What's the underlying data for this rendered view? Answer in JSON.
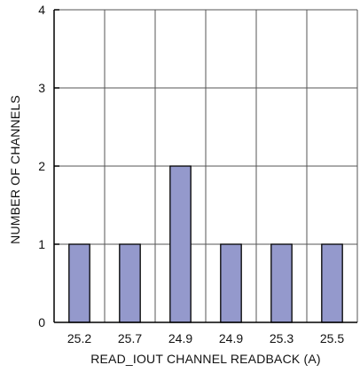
{
  "chart_data": {
    "type": "bar",
    "categories": [
      "25.2",
      "25.7",
      "24.9",
      "24.9",
      "25.3",
      "25.5"
    ],
    "values": [
      1,
      1,
      2,
      1,
      1,
      1
    ],
    "xlabel": "READ_IOUT CHANNEL READBACK (A)",
    "ylabel": "NUMBER OF CHANNELS",
    "ylim": [
      0,
      4
    ],
    "yticks": [
      "0",
      "1",
      "2",
      "3",
      "4"
    ],
    "grid": true,
    "bar_color": "#9499CC",
    "bar_edge_color": "#000000"
  }
}
